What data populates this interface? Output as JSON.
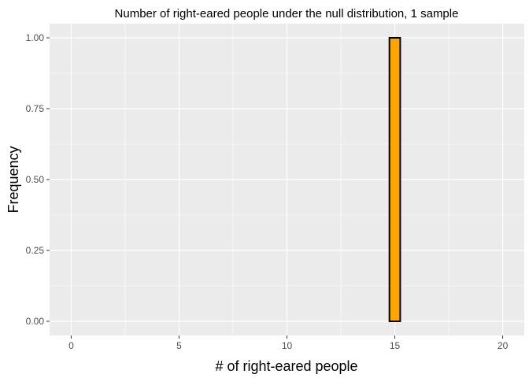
{
  "chart_data": {
    "type": "bar",
    "title": "Number of right-eared people under the null distribution, 1 sample",
    "xlabel": "# of right-eared people",
    "ylabel": "Frequency",
    "xlim": [
      -1,
      21
    ],
    "ylim": [
      -0.05,
      1.05
    ],
    "x_ticks": [
      0,
      5,
      10,
      15,
      20
    ],
    "x_tick_labels": [
      "0",
      "5",
      "10",
      "15",
      "20"
    ],
    "y_ticks": [
      0,
      0.25,
      0.5,
      0.75,
      1
    ],
    "y_tick_labels": [
      "0.00",
      "0.25",
      "0.50",
      "0.75",
      "1.00"
    ],
    "bar_width": 0.5,
    "bars": [
      {
        "x": 15,
        "value": 1
      }
    ],
    "grid": true,
    "colors": {
      "panel_background": "#ebebeb",
      "grid": "#ffffff",
      "bar_fill": "#ffa500",
      "bar_outline": "#000000"
    }
  }
}
